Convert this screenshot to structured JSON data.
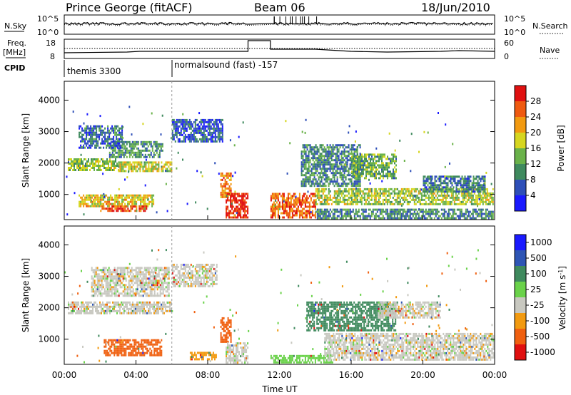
{
  "header": {
    "station": "Prince George (fitACF)",
    "beam": "Beam 06",
    "date": "18/Jun/2010"
  },
  "strip_labels": {
    "nsky": "N.Sky",
    "nsky_top": "10^5",
    "nsky_bottom": "10^0",
    "nsearch": "N.Search",
    "nsearch_top": "10^5",
    "nsearch_bottom": "10^0",
    "freq": "Freq.",
    "freq_unit": "[MHz]",
    "freq_top": "18",
    "freq_bottom": "8",
    "nave": "Nave",
    "nave_top": "60",
    "nave_bottom": "0",
    "cpid": "CPID"
  },
  "cpid_modes": [
    {
      "label": "themis 3300",
      "start_hour": 0
    },
    {
      "label": "normalsound (fast) -157",
      "start_hour": 6
    }
  ],
  "x_axis": {
    "label": "Time UT",
    "ticks": [
      "00:00",
      "04:00",
      "08:00",
      "12:00",
      "16:00",
      "20:00",
      "00:00"
    ]
  },
  "chart_data": [
    {
      "type": "heatmap",
      "title": "",
      "xlabel": "Time UT",
      "ylabel": "Slant Range [km]",
      "xlim": [
        0,
        24
      ],
      "ylim": [
        200,
        4600
      ],
      "yticks": [
        "1000",
        "2000",
        "3000",
        "4000"
      ],
      "colorbar": {
        "label": "Power [dB]",
        "ticks": [
          "4",
          "8",
          "12",
          "16",
          "20",
          "24",
          "28"
        ],
        "range": [
          0,
          30
        ],
        "colors": [
          "#1a1aff",
          "#2e4fb8",
          "#3f8a5e",
          "#6ab24a",
          "#d6d620",
          "#f29a10",
          "#ef5a10",
          "#e01010"
        ]
      },
      "data_gap_hours": [
        10.25,
        11.5
      ],
      "echo_regions": [
        {
          "t0": 0.2,
          "t1": 3.0,
          "r0": 1800,
          "r1": 2150,
          "level": 14
        },
        {
          "t0": 2.5,
          "t1": 5.5,
          "r0": 2200,
          "r1": 2700,
          "level": 10
        },
        {
          "t0": 3.0,
          "t1": 6.0,
          "r0": 1750,
          "r1": 2050,
          "level": 16
        },
        {
          "t0": 0.8,
          "t1": 3.2,
          "r0": 2500,
          "r1": 3200,
          "level": 7
        },
        {
          "t0": 6.0,
          "t1": 8.8,
          "r0": 2700,
          "r1": 3400,
          "level": 6
        },
        {
          "t0": 0.8,
          "t1": 5.0,
          "r0": 650,
          "r1": 1000,
          "level": 18
        },
        {
          "t0": 2.0,
          "t1": 4.6,
          "r0": 500,
          "r1": 650,
          "level": 26
        },
        {
          "t0": 8.7,
          "t1": 9.3,
          "r0": 900,
          "r1": 1700,
          "level": 22
        },
        {
          "t0": 9.0,
          "t1": 10.25,
          "r0": 250,
          "r1": 1050,
          "level": 28
        },
        {
          "t0": 11.5,
          "t1": 14.0,
          "r0": 250,
          "r1": 1050,
          "level": 24
        },
        {
          "t0": 13.2,
          "t1": 16.5,
          "r0": 1300,
          "r1": 2600,
          "level": 9
        },
        {
          "t0": 14.0,
          "t1": 23.9,
          "r0": 700,
          "r1": 1200,
          "level": 15
        },
        {
          "t0": 14.0,
          "t1": 23.9,
          "r0": 250,
          "r1": 550,
          "level": 9
        },
        {
          "t0": 16.0,
          "t1": 18.5,
          "r0": 1500,
          "r1": 2300,
          "level": 12
        },
        {
          "t0": 20.0,
          "t1": 23.5,
          "r0": 1100,
          "r1": 1600,
          "level": 8
        }
      ]
    },
    {
      "type": "heatmap",
      "title": "",
      "xlabel": "Time UT",
      "ylabel": "Slant Range [km]",
      "xlim": [
        0,
        24
      ],
      "ylim": [
        200,
        4600
      ],
      "yticks": [
        "1000",
        "2000",
        "3000",
        "4000"
      ],
      "colorbar": {
        "label": "Velocity [m s^-1]",
        "ticks": [
          "1000",
          "500",
          "100",
          "25",
          "-25",
          "-100",
          "-500",
          "-1000"
        ],
        "colors": [
          "#1a1aff",
          "#2e55b5",
          "#3f8a5e",
          "#6ad24a",
          "#c8c8c0",
          "#f29a10",
          "#f06010",
          "#e01010"
        ]
      },
      "data_gap_hours": [
        10.25,
        11.5
      ],
      "echo_regions": [
        {
          "t0": 0.2,
          "t1": 6.0,
          "r0": 1800,
          "r1": 2200,
          "vel": 0
        },
        {
          "t0": 1.5,
          "t1": 5.8,
          "r0": 2400,
          "r1": 3300,
          "vel": 0
        },
        {
          "t0": 6.0,
          "t1": 8.5,
          "r0": 2700,
          "r1": 3400,
          "vel": 0
        },
        {
          "t0": 2.2,
          "t1": 5.4,
          "r0": 500,
          "r1": 1000,
          "vel": -200
        },
        {
          "t0": 7.0,
          "t1": 8.5,
          "r0": 350,
          "r1": 600,
          "vel": -60
        },
        {
          "t0": 8.7,
          "t1": 9.3,
          "r0": 900,
          "r1": 1700,
          "vel": -300
        },
        {
          "t0": 9.0,
          "t1": 10.25,
          "r0": 250,
          "r1": 900,
          "vel": 0
        },
        {
          "t0": 11.5,
          "t1": 15.0,
          "r0": 250,
          "r1": 500,
          "vel": 60
        },
        {
          "t0": 13.5,
          "t1": 18.5,
          "r0": 1300,
          "r1": 2200,
          "vel": 300
        },
        {
          "t0": 14.5,
          "t1": 23.9,
          "r0": 350,
          "r1": 1200,
          "vel": 0
        },
        {
          "t0": 17.5,
          "t1": 21.0,
          "r0": 1700,
          "r1": 2200,
          "vel": 0
        }
      ]
    }
  ]
}
